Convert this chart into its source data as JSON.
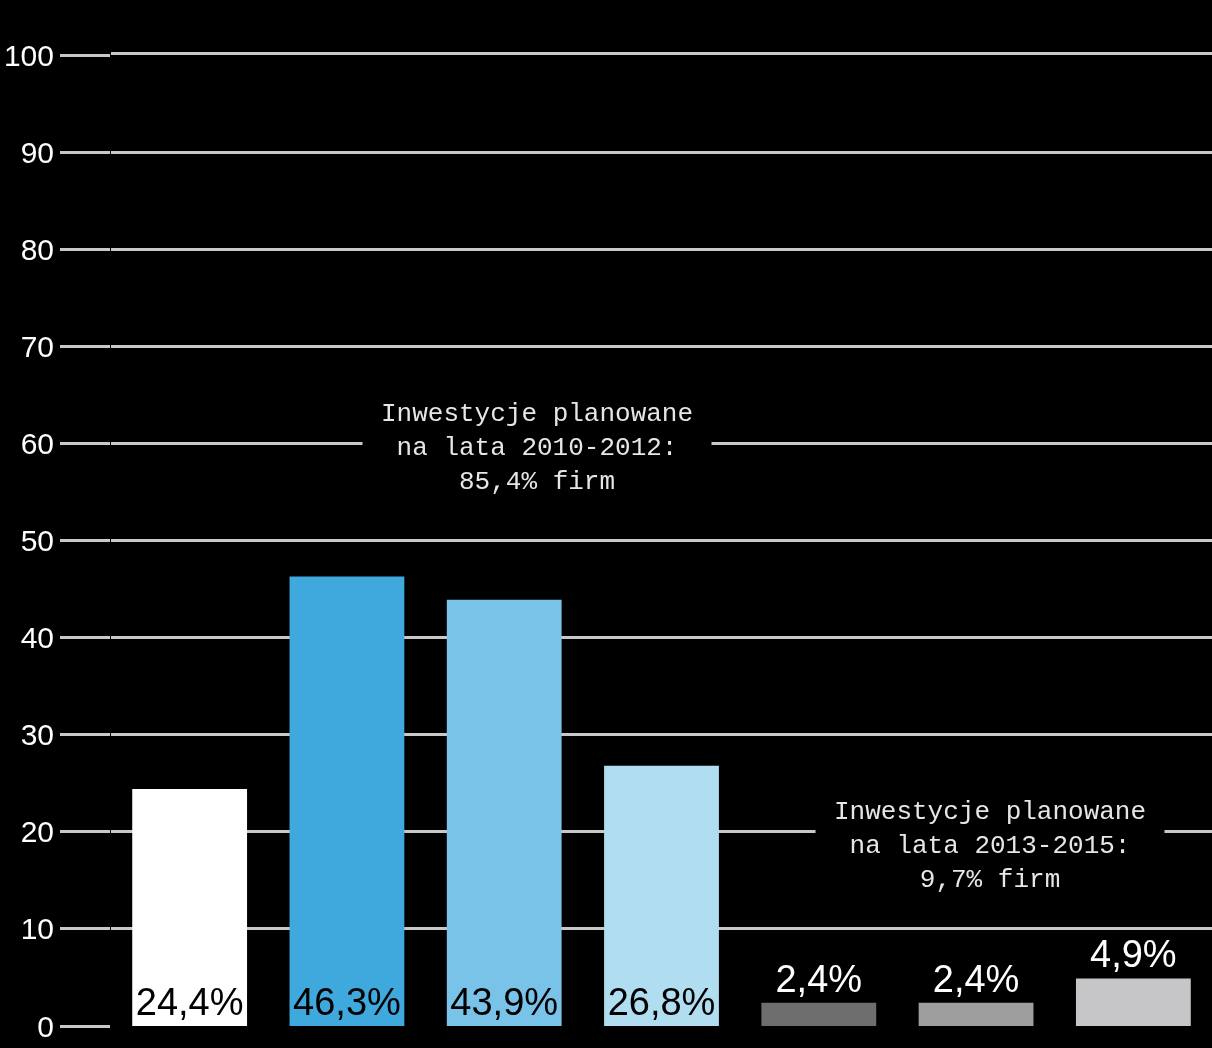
{
  "chart_data": {
    "type": "bar",
    "categories": [
      null,
      null,
      null,
      null,
      null,
      null,
      null
    ],
    "values": [
      24.4,
      46.3,
      43.9,
      26.8,
      2.4,
      2.4,
      4.9
    ],
    "colors": [
      "#ffffff",
      "#3fa8dc",
      "#79c2e8",
      "#b1ddf1",
      "#6e6e6e",
      "#9e9e9f",
      "#c6c6c8"
    ],
    "value_labels": [
      "24,4%",
      "46,3%",
      "43,9%",
      "26,8%",
      "2,4%",
      "2,4%",
      "4,9%"
    ],
    "ylim": [
      0,
      100
    ],
    "yticks": [
      0,
      10,
      20,
      30,
      40,
      50,
      60,
      70,
      80,
      90,
      100
    ],
    "grid": "y",
    "tick_labels": "y",
    "annotations": [
      "Inwestycje planowane na lata 2010-2012: 85,4% firm",
      "Inwestycje planowane na lata 2013-2015: 9,7% firm"
    ]
  }
}
